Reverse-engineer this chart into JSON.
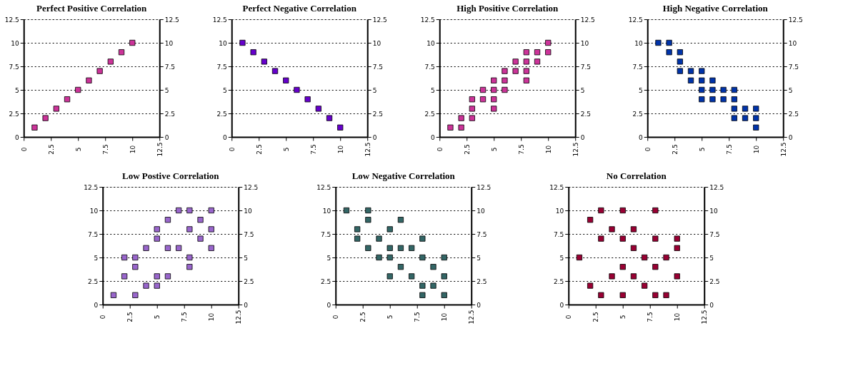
{
  "chart_data": [
    {
      "type": "scatter",
      "title": "Perfect Positive Correlation",
      "x": [
        1,
        2,
        3,
        4,
        5,
        6,
        7,
        8,
        9,
        10
      ],
      "series": [
        {
          "color": "#cc3399",
          "values": [
            1,
            2,
            3,
            4,
            5,
            6,
            7,
            8,
            9,
            10
          ]
        }
      ],
      "xlim": [
        0,
        12.5
      ],
      "xticks": [
        0,
        2.5,
        5,
        7.5,
        10,
        12.5
      ],
      "ylim": [
        0,
        12.5
      ],
      "yticks": [
        0,
        2.5,
        5,
        7.5,
        10,
        12.5
      ],
      "y2lim": [
        0,
        12.5
      ],
      "y2ticks": [
        0,
        2.5,
        5,
        7.5,
        10,
        12.5
      ],
      "grid": "y",
      "marker": "square"
    },
    {
      "type": "scatter",
      "title": "Perfect Negative Correlation",
      "x": [
        1,
        2,
        3,
        4,
        5,
        6,
        7,
        8,
        9,
        10
      ],
      "series": [
        {
          "color": "#6600cc",
          "values": [
            10,
            9,
            8,
            7,
            6,
            5,
            4,
            3,
            2,
            1
          ]
        }
      ],
      "xlim": [
        0,
        12.5
      ],
      "xticks": [
        0,
        2.5,
        5,
        7.5,
        10,
        12.5
      ],
      "ylim": [
        0,
        12.5
      ],
      "yticks": [
        0,
        2.5,
        5,
        7.5,
        10,
        12.5
      ],
      "y2lim": [
        0,
        12.5
      ],
      "y2ticks": [
        0,
        2.5,
        5,
        7.5,
        10,
        12.5
      ],
      "grid": "y",
      "marker": "square"
    },
    {
      "type": "scatter",
      "title": "High Positive Correlation",
      "x": [
        1,
        2,
        2,
        3,
        3,
        3,
        4,
        4,
        5,
        5,
        5,
        5,
        6,
        6,
        6,
        7,
        7,
        8,
        8,
        8,
        8,
        9,
        9,
        10,
        10
      ],
      "series": [
        {
          "color": "#cc3399",
          "values": [
            1,
            1,
            2,
            2,
            3,
            4,
            4,
            5,
            3,
            4,
            5,
            6,
            5,
            6,
            7,
            7,
            8,
            6,
            7,
            8,
            9,
            8,
            9,
            9,
            10
          ]
        }
      ],
      "xlim": [
        0,
        12.5
      ],
      "xticks": [
        0,
        2.5,
        5,
        7.5,
        10,
        12.5
      ],
      "ylim": [
        0,
        12.5
      ],
      "yticks": [
        0,
        2.5,
        5,
        7.5,
        10,
        12.5
      ],
      "y2lim": [
        0,
        12.5
      ],
      "y2ticks": [
        0,
        2.5,
        5,
        7.5,
        10,
        12.5
      ],
      "grid": "y",
      "marker": "square"
    },
    {
      "type": "scatter",
      "title": "High Negative Correlation",
      "x": [
        1,
        2,
        2,
        3,
        3,
        3,
        4,
        4,
        5,
        5,
        5,
        5,
        6,
        6,
        6,
        7,
        7,
        8,
        8,
        8,
        8,
        9,
        9,
        10,
        10,
        10
      ],
      "series": [
        {
          "color": "#0033aa",
          "values": [
            10,
            10,
            9,
            9,
            8,
            7,
            7,
            6,
            7,
            6,
            5,
            4,
            6,
            5,
            4,
            5,
            4,
            5,
            4,
            3,
            2,
            3,
            2,
            3,
            2,
            1
          ]
        }
      ],
      "xlim": [
        0,
        12.5
      ],
      "xticks": [
        0,
        2.5,
        5,
        7.5,
        10,
        12.5
      ],
      "ylim": [
        0,
        12.5
      ],
      "yticks": [
        0,
        2.5,
        5,
        7.5,
        10,
        12.5
      ],
      "y2lim": [
        0,
        12.5
      ],
      "y2ticks": [
        0,
        2.5,
        5,
        7.5,
        10,
        12.5
      ],
      "grid": "y",
      "marker": "square"
    },
    {
      "type": "scatter",
      "title": "Low Postive Correlation",
      "x": [
        1,
        2,
        2,
        3,
        3,
        3,
        4,
        4,
        5,
        5,
        5,
        5,
        6,
        6,
        6,
        7,
        7,
        8,
        8,
        8,
        8,
        9,
        9,
        10,
        10,
        10
      ],
      "series": [
        {
          "color": "#9966cc",
          "values": [
            1,
            5,
            3,
            5,
            4,
            1,
            6,
            2,
            8,
            7,
            3,
            2,
            9,
            6,
            3,
            10,
            6,
            10,
            8,
            5,
            4,
            9,
            7,
            10,
            8,
            6
          ]
        }
      ],
      "xlim": [
        0,
        12.5
      ],
      "xticks": [
        0,
        2.5,
        5,
        7.5,
        10,
        12.5
      ],
      "ylim": [
        0,
        12.5
      ],
      "yticks": [
        0,
        2.5,
        5,
        7.5,
        10,
        12.5
      ],
      "y2lim": [
        0,
        12.5
      ],
      "y2ticks": [
        0,
        2.5,
        5,
        7.5,
        10,
        12.5
      ],
      "grid": "y",
      "marker": "square"
    },
    {
      "type": "scatter",
      "title": "Low Negative Correlation",
      "x": [
        1,
        2,
        2,
        3,
        3,
        3,
        4,
        4,
        5,
        5,
        5,
        5,
        6,
        6,
        6,
        7,
        7,
        8,
        8,
        8,
        8,
        9,
        9,
        10,
        10,
        10
      ],
      "series": [
        {
          "color": "#336666",
          "values": [
            10,
            8,
            7,
            10,
            9,
            6,
            7,
            5,
            8,
            6,
            5,
            3,
            9,
            6,
            4,
            6,
            3,
            7,
            5,
            2,
            1,
            4,
            2,
            5,
            3,
            1
          ]
        }
      ],
      "xlim": [
        0,
        12.5
      ],
      "xticks": [
        0,
        2.5,
        5,
        7.5,
        10,
        12.5
      ],
      "ylim": [
        0,
        12.5
      ],
      "yticks": [
        0,
        2.5,
        5,
        7.5,
        10,
        12.5
      ],
      "y2lim": [
        0,
        12.5
      ],
      "y2ticks": [
        0,
        2.5,
        5,
        7.5,
        10,
        12.5
      ],
      "grid": "y",
      "marker": "square"
    },
    {
      "type": "scatter",
      "title": "No Correlation",
      "x": [
        1,
        2,
        2,
        3,
        3,
        3,
        4,
        4,
        5,
        5,
        5,
        5,
        6,
        6,
        6,
        7,
        7,
        8,
        8,
        8,
        8,
        9,
        9,
        10,
        10,
        10
      ],
      "series": [
        {
          "color": "#990033",
          "values": [
            5,
            9,
            2,
            10,
            7,
            1,
            8,
            3,
            10,
            7,
            4,
            1,
            8,
            6,
            3,
            5,
            2,
            10,
            7,
            4,
            1,
            5,
            1,
            7,
            6,
            3
          ]
        }
      ],
      "xlim": [
        0,
        12.5
      ],
      "xticks": [
        0,
        2.5,
        5,
        7.5,
        10,
        12.5
      ],
      "ylim": [
        0,
        12.5
      ],
      "yticks": [
        0,
        2.5,
        5,
        7.5,
        10,
        12.5
      ],
      "y2lim": [
        0,
        12.5
      ],
      "y2ticks": [
        0,
        2.5,
        5,
        7.5,
        10,
        12.5
      ],
      "grid": "y",
      "marker": "square"
    }
  ]
}
